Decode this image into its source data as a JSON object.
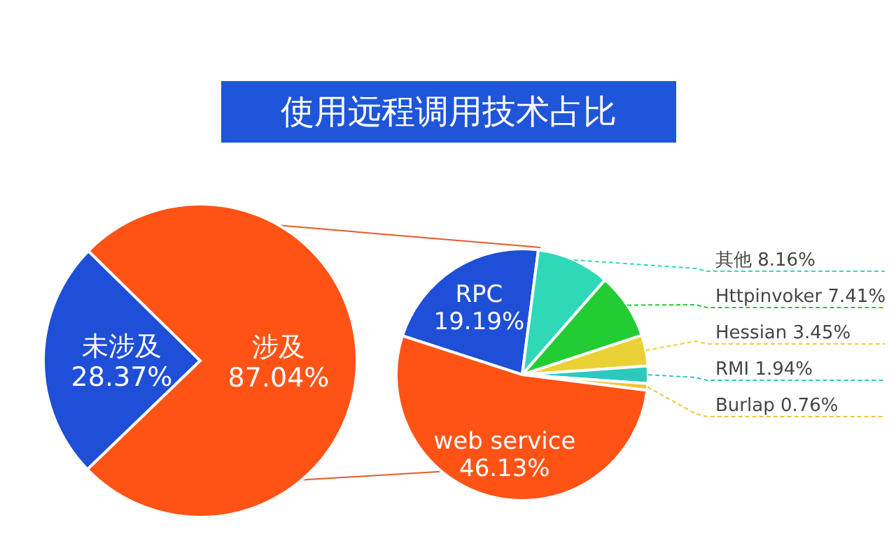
{
  "chart_data": [
    {
      "type": "pie",
      "title": "使用远程调用技术占比",
      "categories": [
        "未涉及",
        "涉及"
      ],
      "values": [
        28.37,
        87.04
      ],
      "colors": [
        "#1f4fd6",
        "#ff5316"
      ],
      "value_labels": [
        "28.37%",
        "87.04%"
      ],
      "legend": false
    },
    {
      "type": "pie",
      "categories": [
        "RPC",
        "其他",
        "Httpinvoker",
        "Hessian",
        "RMI",
        "Burlap",
        "web service"
      ],
      "values": [
        19.19,
        8.16,
        7.41,
        3.45,
        1.94,
        0.76,
        46.13
      ],
      "colors": [
        "#1f4fd6",
        "#2fd9b8",
        "#22cc33",
        "#ead236",
        "#2ec9bd",
        "#efc43a",
        "#ff5316"
      ],
      "value_labels": [
        "19.19%",
        "8.16%",
        "7.41%",
        "3.45%",
        "1.94%",
        "0.76%",
        "46.13%"
      ],
      "legend": false
    }
  ]
}
